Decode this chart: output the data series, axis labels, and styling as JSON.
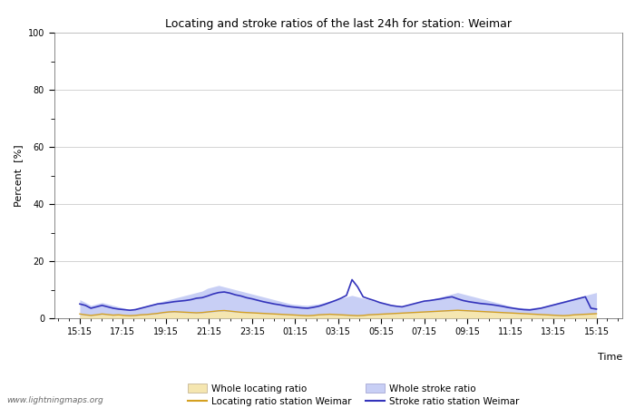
{
  "title": "Locating and stroke ratios of the last 24h for station: Weimar",
  "xlabel": "Time",
  "ylabel": "Percent  [%]",
  "ylim": [
    0,
    100
  ],
  "yticks": [
    0,
    20,
    40,
    60,
    80,
    100
  ],
  "x_tick_labels": [
    "15:15",
    "17:15",
    "19:15",
    "21:15",
    "23:15",
    "01:15",
    "03:15",
    "05:15",
    "07:15",
    "09:15",
    "11:15",
    "13:15",
    "15:15"
  ],
  "watermark": "www.lightningmaps.org",
  "whole_locating_color": "#f5e6b0",
  "whole_stroke_color": "#c8cff5",
  "locating_line_color": "#d4a020",
  "stroke_line_color": "#3333bb",
  "whole_locating_ratio": [
    1.2,
    1.0,
    0.9,
    1.1,
    1.3,
    1.2,
    1.0,
    1.2,
    1.0,
    0.8,
    0.9,
    1.1,
    1.2,
    1.3,
    1.5,
    1.8,
    2.0,
    2.1,
    2.0,
    1.9,
    1.8,
    1.7,
    1.8,
    2.0,
    2.2,
    2.4,
    2.5,
    2.3,
    2.1,
    2.0,
    1.9,
    1.8,
    1.7,
    1.6,
    1.5,
    1.4,
    1.3,
    1.2,
    1.1,
    1.0,
    0.9,
    0.9,
    1.0,
    1.1,
    1.2,
    1.3,
    1.2,
    1.1,
    1.0,
    0.9,
    0.9,
    1.0,
    1.1,
    1.2,
    1.3,
    1.4,
    1.5,
    1.6,
    1.7,
    1.8,
    1.9,
    2.0,
    2.1,
    2.2,
    2.3,
    2.4,
    2.5,
    2.6,
    2.7,
    2.6,
    2.5,
    2.4,
    2.3,
    2.2,
    2.1,
    2.0,
    1.9,
    1.8,
    1.7,
    1.6,
    1.5,
    1.4,
    1.3,
    1.2,
    1.1,
    1.0,
    0.9,
    0.9,
    1.0,
    1.1,
    1.2,
    1.3,
    1.4,
    1.5
  ],
  "whole_stroke_ratio": [
    6.5,
    5.5,
    4.5,
    5.0,
    5.5,
    5.0,
    4.5,
    4.0,
    3.5,
    3.0,
    3.5,
    4.0,
    4.5,
    5.0,
    5.5,
    6.0,
    6.5,
    7.0,
    7.5,
    8.0,
    8.5,
    9.0,
    9.5,
    10.5,
    11.0,
    11.5,
    11.0,
    10.5,
    10.0,
    9.5,
    9.0,
    8.5,
    8.0,
    7.5,
    7.0,
    6.5,
    6.0,
    5.5,
    5.0,
    4.8,
    4.6,
    4.5,
    4.8,
    5.0,
    5.5,
    6.0,
    6.5,
    7.0,
    7.5,
    8.0,
    7.5,
    7.0,
    6.5,
    6.0,
    5.5,
    5.0,
    4.5,
    4.2,
    4.0,
    4.5,
    5.0,
    5.5,
    6.0,
    6.5,
    7.0,
    7.5,
    8.0,
    8.5,
    9.0,
    8.5,
    8.0,
    7.5,
    7.0,
    6.5,
    6.0,
    5.5,
    5.0,
    4.5,
    4.0,
    3.8,
    3.6,
    3.5,
    3.8,
    4.0,
    4.5,
    5.0,
    5.5,
    6.0,
    6.5,
    7.0,
    7.5,
    8.0,
    8.5,
    9.0
  ],
  "locating_ratio": [
    1.5,
    1.2,
    1.0,
    1.2,
    1.5,
    1.3,
    1.1,
    1.2,
    1.0,
    0.9,
    1.0,
    1.2,
    1.3,
    1.5,
    1.7,
    2.0,
    2.2,
    2.3,
    2.2,
    2.1,
    2.0,
    1.9,
    2.0,
    2.2,
    2.4,
    2.6,
    2.7,
    2.5,
    2.3,
    2.1,
    2.0,
    1.9,
    1.8,
    1.7,
    1.6,
    1.5,
    1.4,
    1.3,
    1.2,
    1.1,
    1.0,
    0.9,
    1.0,
    1.2,
    1.3,
    1.4,
    1.3,
    1.2,
    1.1,
    1.0,
    0.9,
    1.0,
    1.2,
    1.3,
    1.4,
    1.5,
    1.6,
    1.7,
    1.8,
    1.9,
    2.0,
    2.1,
    2.2,
    2.3,
    2.4,
    2.5,
    2.6,
    2.7,
    2.8,
    2.7,
    2.6,
    2.5,
    2.4,
    2.3,
    2.2,
    2.1,
    2.0,
    1.9,
    1.8,
    1.7,
    1.6,
    1.5,
    1.4,
    1.3,
    1.2,
    1.1,
    1.0,
    0.9,
    1.0,
    1.2,
    1.3,
    1.4,
    1.5,
    1.6
  ],
  "stroke_ratio": [
    5.0,
    4.5,
    3.5,
    4.0,
    4.5,
    4.0,
    3.5,
    3.2,
    3.0,
    2.8,
    3.0,
    3.5,
    4.0,
    4.5,
    5.0,
    5.2,
    5.5,
    5.8,
    6.0,
    6.2,
    6.5,
    7.0,
    7.2,
    7.8,
    8.5,
    9.0,
    9.2,
    8.8,
    8.2,
    7.8,
    7.2,
    6.8,
    6.3,
    5.8,
    5.4,
    5.0,
    4.7,
    4.3,
    4.0,
    3.8,
    3.6,
    3.5,
    3.8,
    4.2,
    4.8,
    5.5,
    6.2,
    7.0,
    8.0,
    13.5,
    11.0,
    7.5,
    6.8,
    6.2,
    5.5,
    5.0,
    4.5,
    4.2,
    4.0,
    4.5,
    5.0,
    5.5,
    6.0,
    6.2,
    6.5,
    6.8,
    7.2,
    7.5,
    6.8,
    6.2,
    5.8,
    5.5,
    5.2,
    5.0,
    4.8,
    4.5,
    4.2,
    3.8,
    3.5,
    3.2,
    3.0,
    2.9,
    3.2,
    3.5,
    4.0,
    4.5,
    5.0,
    5.5,
    6.0,
    6.5,
    7.0,
    7.5,
    3.5,
    3.2
  ]
}
